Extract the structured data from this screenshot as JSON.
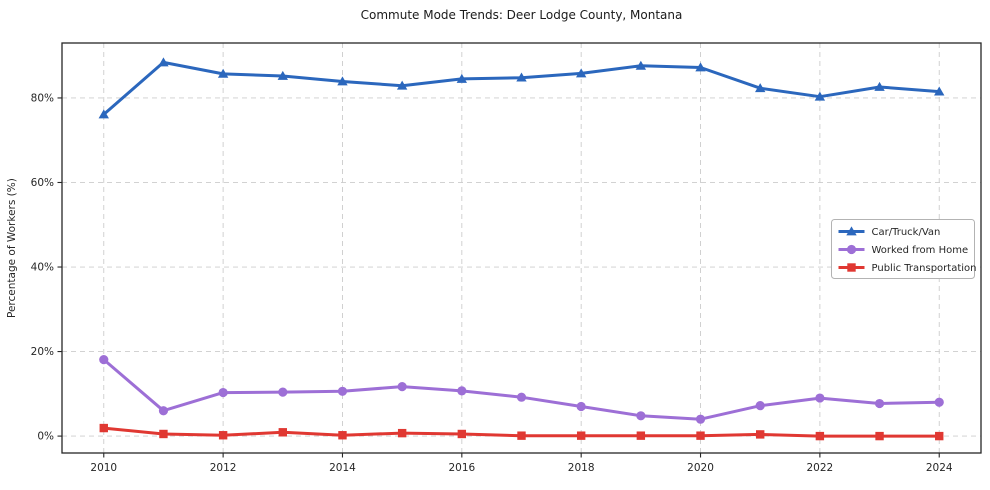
{
  "chart_data": {
    "type": "line",
    "title": "Commute Mode Trends: Deer Lodge County, Montana",
    "xlabel": "",
    "ylabel": "Percentage of Workers (%)",
    "x": [
      2010,
      2011,
      2012,
      2013,
      2014,
      2015,
      2016,
      2017,
      2018,
      2019,
      2020,
      2021,
      2022,
      2023,
      2024
    ],
    "series": [
      {
        "name": "Car/Truck/Van",
        "marker": "triangle",
        "color": "#2b67bd",
        "values": [
          76.1,
          88.4,
          85.7,
          85.2,
          83.9,
          82.9,
          84.5,
          84.8,
          85.8,
          87.6,
          87.2,
          82.3,
          80.3,
          82.6,
          81.5
        ]
      },
      {
        "name": "Worked from Home",
        "marker": "circle",
        "color": "#9d6fd6",
        "values": [
          18.1,
          6.0,
          10.3,
          10.4,
          10.6,
          11.7,
          10.7,
          9.2,
          7.0,
          4.8,
          4.0,
          7.2,
          9.0,
          7.7,
          8.0
        ]
      },
      {
        "name": "Public Transportation",
        "marker": "square",
        "color": "#e03832",
        "values": [
          1.9,
          0.5,
          0.2,
          0.9,
          0.2,
          0.7,
          0.5,
          0.1,
          0.1,
          0.1,
          0.1,
          0.4,
          0.0,
          0.0,
          0.0
        ]
      }
    ],
    "xticks": {
      "values": [
        2010,
        2012,
        2014,
        2016,
        2018,
        2020,
        2022,
        2024
      ],
      "labels": [
        "2010",
        "2012",
        "2014",
        "2016",
        "2018",
        "2020",
        "2022",
        "2024"
      ]
    },
    "yticks": {
      "values": [
        0,
        20,
        40,
        60,
        80
      ],
      "labels": [
        "0%",
        "20%",
        "40%",
        "60%",
        "80%"
      ]
    },
    "xlim": [
      2009.3,
      2024.7
    ],
    "ylim": [
      -4,
      93
    ],
    "grid": true,
    "legend_position": "center-right"
  },
  "colors": {
    "grid": "#cccccc",
    "spine": "#262626",
    "text": "#262626",
    "legend_border": "#b3b3b3",
    "background": "#ffffff"
  }
}
